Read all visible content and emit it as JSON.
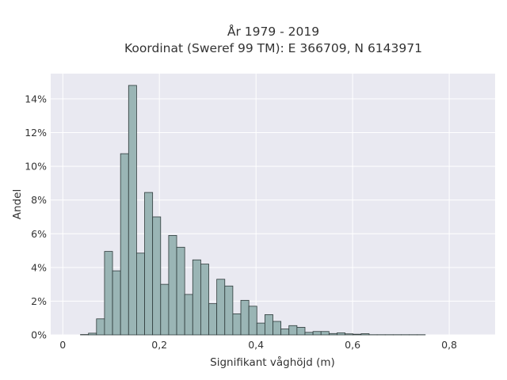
{
  "chart_data": {
    "type": "bar",
    "title_line1": "År 1979 - 2019",
    "title_line2": "Koordinat (Sweref 99 TM): E 366709, N 6143971",
    "xlabel": "Signifikant våghöjd (m)",
    "ylabel": "Andel",
    "xlim": [
      -0.025,
      0.895
    ],
    "ylim": [
      0,
      15.5
    ],
    "x_ticks": [
      0,
      0.2,
      0.4,
      0.6,
      0.8
    ],
    "x_tick_labels": [
      "0",
      "0,2",
      "0,4",
      "0,6",
      "0,8"
    ],
    "y_ticks": [
      0,
      2,
      4,
      6,
      8,
      10,
      12,
      14
    ],
    "y_tick_labels": [
      "0%",
      "2%",
      "4%",
      "6%",
      "8%",
      "10%",
      "12%",
      "14%"
    ],
    "grid": true,
    "bin_width": 0.0166,
    "bin_starts": [
      0.02,
      0.0366,
      0.0532,
      0.0698,
      0.0864,
      0.103,
      0.1196,
      0.1362,
      0.1528,
      0.1694,
      0.186,
      0.2026,
      0.2192,
      0.2358,
      0.2524,
      0.269,
      0.2856,
      0.3022,
      0.3188,
      0.3354,
      0.352,
      0.3686,
      0.3852,
      0.4018,
      0.4184,
      0.435,
      0.4516,
      0.4682,
      0.4848,
      0.5014,
      0.518,
      0.5346,
      0.5512,
      0.5678,
      0.5844,
      0.601,
      0.6176,
      0.6342,
      0.6508,
      0.6674,
      0.684,
      0.7006,
      0.7172,
      0.7338
    ],
    "values": [
      0.0,
      0.02,
      0.1,
      0.95,
      4.95,
      3.8,
      10.75,
      14.8,
      4.85,
      8.45,
      7.0,
      3.0,
      5.9,
      5.2,
      2.4,
      4.45,
      4.2,
      1.85,
      3.3,
      2.9,
      1.25,
      2.05,
      1.7,
      0.7,
      1.2,
      0.8,
      0.35,
      0.55,
      0.45,
      0.15,
      0.2,
      0.2,
      0.08,
      0.12,
      0.06,
      0.04,
      0.07,
      0.01,
      0.01,
      0.01,
      0.01,
      0.01,
      0.01,
      0.01
    ],
    "colors": {
      "bar_fill": "#9ab5b5",
      "bar_stroke": "#2e3a3a",
      "plot_background": "#e9e9f1",
      "grid": "#ffffff",
      "text": "#333333"
    }
  }
}
